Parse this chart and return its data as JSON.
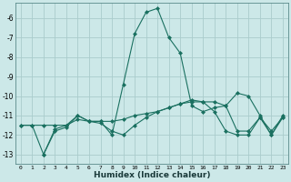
{
  "xlabel": "Humidex (Indice chaleur)",
  "background_color": "#cce8e8",
  "grid_color": "#aacccc",
  "line_color": "#1a7060",
  "xlim": [
    -0.5,
    23.5
  ],
  "ylim": [
    -13.5,
    -5.2
  ],
  "yticks": [
    -13,
    -12,
    -11,
    -10,
    -9,
    -8,
    -7,
    -6
  ],
  "xtick_labels": [
    "0",
    "1",
    "2",
    "3",
    "4",
    "5",
    "6",
    "7",
    "8",
    "9",
    "10",
    "11",
    "12",
    "13",
    "14",
    "15",
    "16",
    "17",
    "18",
    "19",
    "20",
    "21",
    "22",
    "23"
  ],
  "xtick_positions": [
    0,
    1,
    2,
    3,
    4,
    5,
    6,
    7,
    8,
    9,
    10,
    11,
    12,
    13,
    14,
    15,
    16,
    17,
    18,
    19,
    20,
    21,
    22,
    23
  ],
  "series": [
    {
      "x": [
        0,
        1,
        2,
        3,
        4,
        5,
        6,
        7,
        8,
        9,
        10,
        11,
        12,
        13,
        14,
        15,
        16,
        17,
        18,
        19,
        20,
        21,
        22,
        23
      ],
      "y": [
        -11.5,
        -11.5,
        -13.0,
        -11.8,
        -11.6,
        -11.0,
        -11.3,
        -11.4,
        -11.8,
        -12.0,
        -11.5,
        -11.1,
        -10.8,
        -10.6,
        -10.4,
        -10.2,
        -10.3,
        -10.8,
        -11.8,
        -12.0,
        -12.0,
        -11.1,
        -12.0,
        -11.1
      ],
      "marker": "D",
      "markersize": 2,
      "linewidth": 0.8
    },
    {
      "x": [
        0,
        1,
        2,
        3,
        4,
        5,
        6,
        7,
        8,
        9,
        10,
        11,
        12,
        13,
        14,
        15,
        16,
        17,
        18,
        19,
        20,
        21,
        22,
        23
      ],
      "y": [
        -11.5,
        -11.5,
        -11.5,
        -11.5,
        -11.5,
        -11.2,
        -11.3,
        -11.3,
        -11.3,
        -11.2,
        -11.0,
        -10.9,
        -10.8,
        -10.6,
        -10.4,
        -10.3,
        -10.3,
        -10.3,
        -10.5,
        -11.8,
        -11.8,
        -11.1,
        -11.8,
        -11.1
      ],
      "marker": "D",
      "markersize": 2,
      "linewidth": 0.8
    },
    {
      "x": [
        2,
        3,
        4,
        5,
        6,
        7,
        8,
        9,
        10,
        11,
        12,
        13,
        14,
        15,
        16,
        17,
        18,
        19,
        20,
        21,
        22,
        23
      ],
      "y": [
        -13.0,
        -11.7,
        -11.5,
        -11.0,
        -11.3,
        -11.3,
        -12.0,
        -9.4,
        -6.8,
        -5.7,
        -5.5,
        -7.0,
        -7.8,
        -10.5,
        -10.8,
        -10.6,
        -10.5,
        -9.85,
        -10.0,
        -11.0,
        -12.0,
        -11.0
      ],
      "marker": "D",
      "markersize": 2,
      "linewidth": 0.8
    }
  ]
}
